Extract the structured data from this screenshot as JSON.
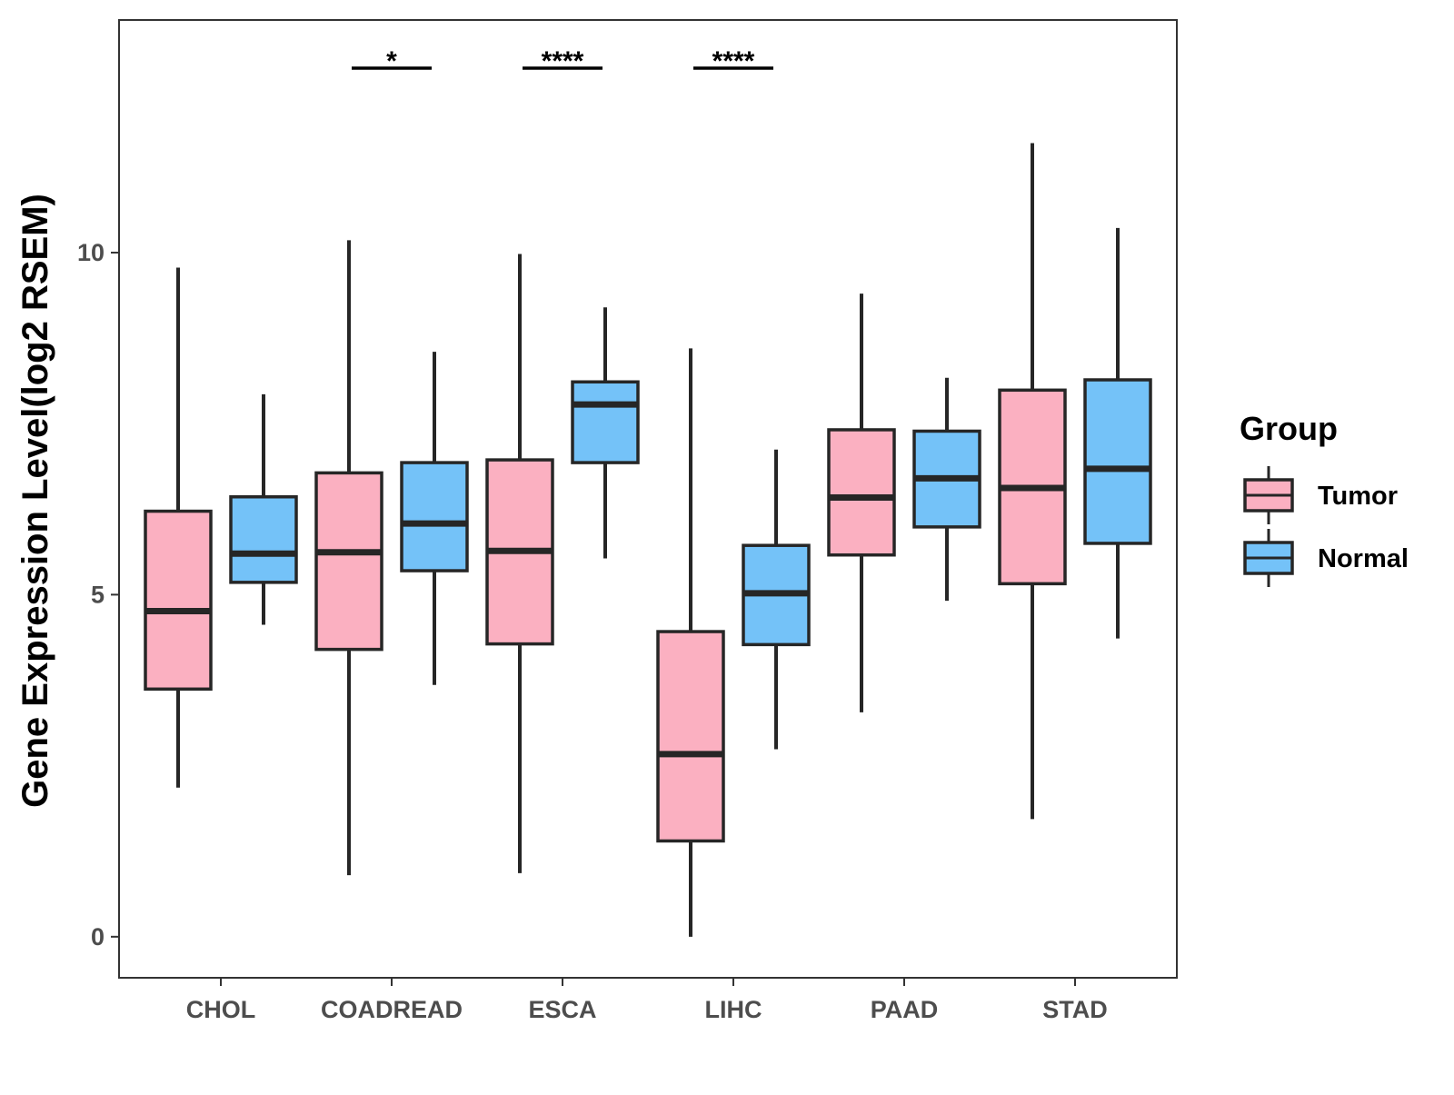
{
  "chart_data": {
    "type": "boxplot",
    "title": "",
    "xlabel": "",
    "ylabel": "Gene Expression Level(log2 RSEM)",
    "ylim": [
      -0.6,
      13.4
    ],
    "yticks": [
      0,
      5,
      10
    ],
    "categories": [
      "CHOL",
      "COADREAD",
      "ESCA",
      "LIHC",
      "PAAD",
      "STAD"
    ],
    "grid": false,
    "legend": {
      "title": "Group",
      "position": "right"
    },
    "series": [
      {
        "name": "Tumor",
        "color": "#fbb0c1",
        "boxes": [
          {
            "min": 2.18,
            "q1": 3.62,
            "median": 4.76,
            "q3": 6.22,
            "max": 9.78
          },
          {
            "min": 0.9,
            "q1": 4.2,
            "median": 5.62,
            "q3": 6.78,
            "max": 10.18
          },
          {
            "min": 0.93,
            "q1": 4.28,
            "median": 5.64,
            "q3": 6.97,
            "max": 9.98
          },
          {
            "min": 0.0,
            "q1": 1.4,
            "median": 2.67,
            "q3": 4.46,
            "max": 8.6
          },
          {
            "min": 3.28,
            "q1": 5.58,
            "median": 6.42,
            "q3": 7.41,
            "max": 9.4
          },
          {
            "min": 1.72,
            "q1": 5.16,
            "median": 6.56,
            "q3": 7.99,
            "max": 11.6
          }
        ]
      },
      {
        "name": "Normal",
        "color": "#74c2f8",
        "boxes": [
          {
            "min": 4.56,
            "q1": 5.18,
            "median": 5.6,
            "q3": 6.43,
            "max": 7.93
          },
          {
            "min": 3.68,
            "q1": 5.35,
            "median": 6.04,
            "q3": 6.93,
            "max": 8.55
          },
          {
            "min": 5.53,
            "q1": 6.93,
            "median": 7.78,
            "q3": 8.11,
            "max": 9.2
          },
          {
            "min": 2.74,
            "q1": 4.27,
            "median": 5.02,
            "q3": 5.72,
            "max": 7.12
          },
          {
            "min": 4.91,
            "q1": 5.99,
            "median": 6.7,
            "q3": 7.39,
            "max": 8.17
          },
          {
            "min": 4.36,
            "q1": 5.75,
            "median": 6.84,
            "q3": 8.14,
            "max": 10.36
          }
        ]
      }
    ],
    "annotations": [
      {
        "category": "COADREAD",
        "label": "*"
      },
      {
        "category": "ESCA",
        "label": "****"
      },
      {
        "category": "LIHC",
        "label": "****"
      }
    ]
  }
}
